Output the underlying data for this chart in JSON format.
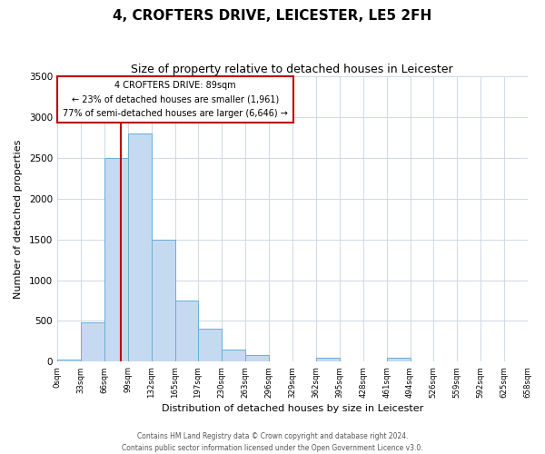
{
  "title": "4, CROFTERS DRIVE, LEICESTER, LE5 2FH",
  "subtitle": "Size of property relative to detached houses in Leicester",
  "xlabel": "Distribution of detached houses by size in Leicester",
  "ylabel": "Number of detached properties",
  "bin_edges": [
    0,
    33,
    66,
    99,
    132,
    165,
    197,
    230,
    263,
    296,
    329,
    362,
    395,
    428,
    461,
    494,
    526,
    559,
    592,
    625,
    658
  ],
  "bin_counts": [
    30,
    480,
    2500,
    2800,
    1500,
    750,
    400,
    150,
    80,
    0,
    0,
    50,
    0,
    0,
    50,
    0,
    0,
    0,
    0,
    0
  ],
  "bar_color": "#c5d9f1",
  "bar_edge_color": "#6baed6",
  "property_line_x": 89,
  "property_line_color": "#c00000",
  "annotation_box_color": "#c00000",
  "annotation_text_line1": "4 CROFTERS DRIVE: 89sqm",
  "annotation_text_line2": "← 23% of detached houses are smaller (1,961)",
  "annotation_text_line3": "77% of semi-detached houses are larger (6,646) →",
  "ylim": [
    0,
    3500
  ],
  "tick_labels": [
    "0sqm",
    "33sqm",
    "66sqm",
    "99sqm",
    "132sqm",
    "165sqm",
    "197sqm",
    "230sqm",
    "263sqm",
    "296sqm",
    "329sqm",
    "362sqm",
    "395sqm",
    "428sqm",
    "461sqm",
    "494sqm",
    "526sqm",
    "559sqm",
    "592sqm",
    "625sqm",
    "658sqm"
  ],
  "footer_line1": "Contains HM Land Registry data © Crown copyright and database right 2024.",
  "footer_line2": "Contains public sector information licensed under the Open Government Licence v3.0.",
  "background_color": "#ffffff",
  "grid_color": "#d0d8e4",
  "title_fontsize": 11,
  "subtitle_fontsize": 9,
  "xlabel_fontsize": 8,
  "ylabel_fontsize": 8
}
